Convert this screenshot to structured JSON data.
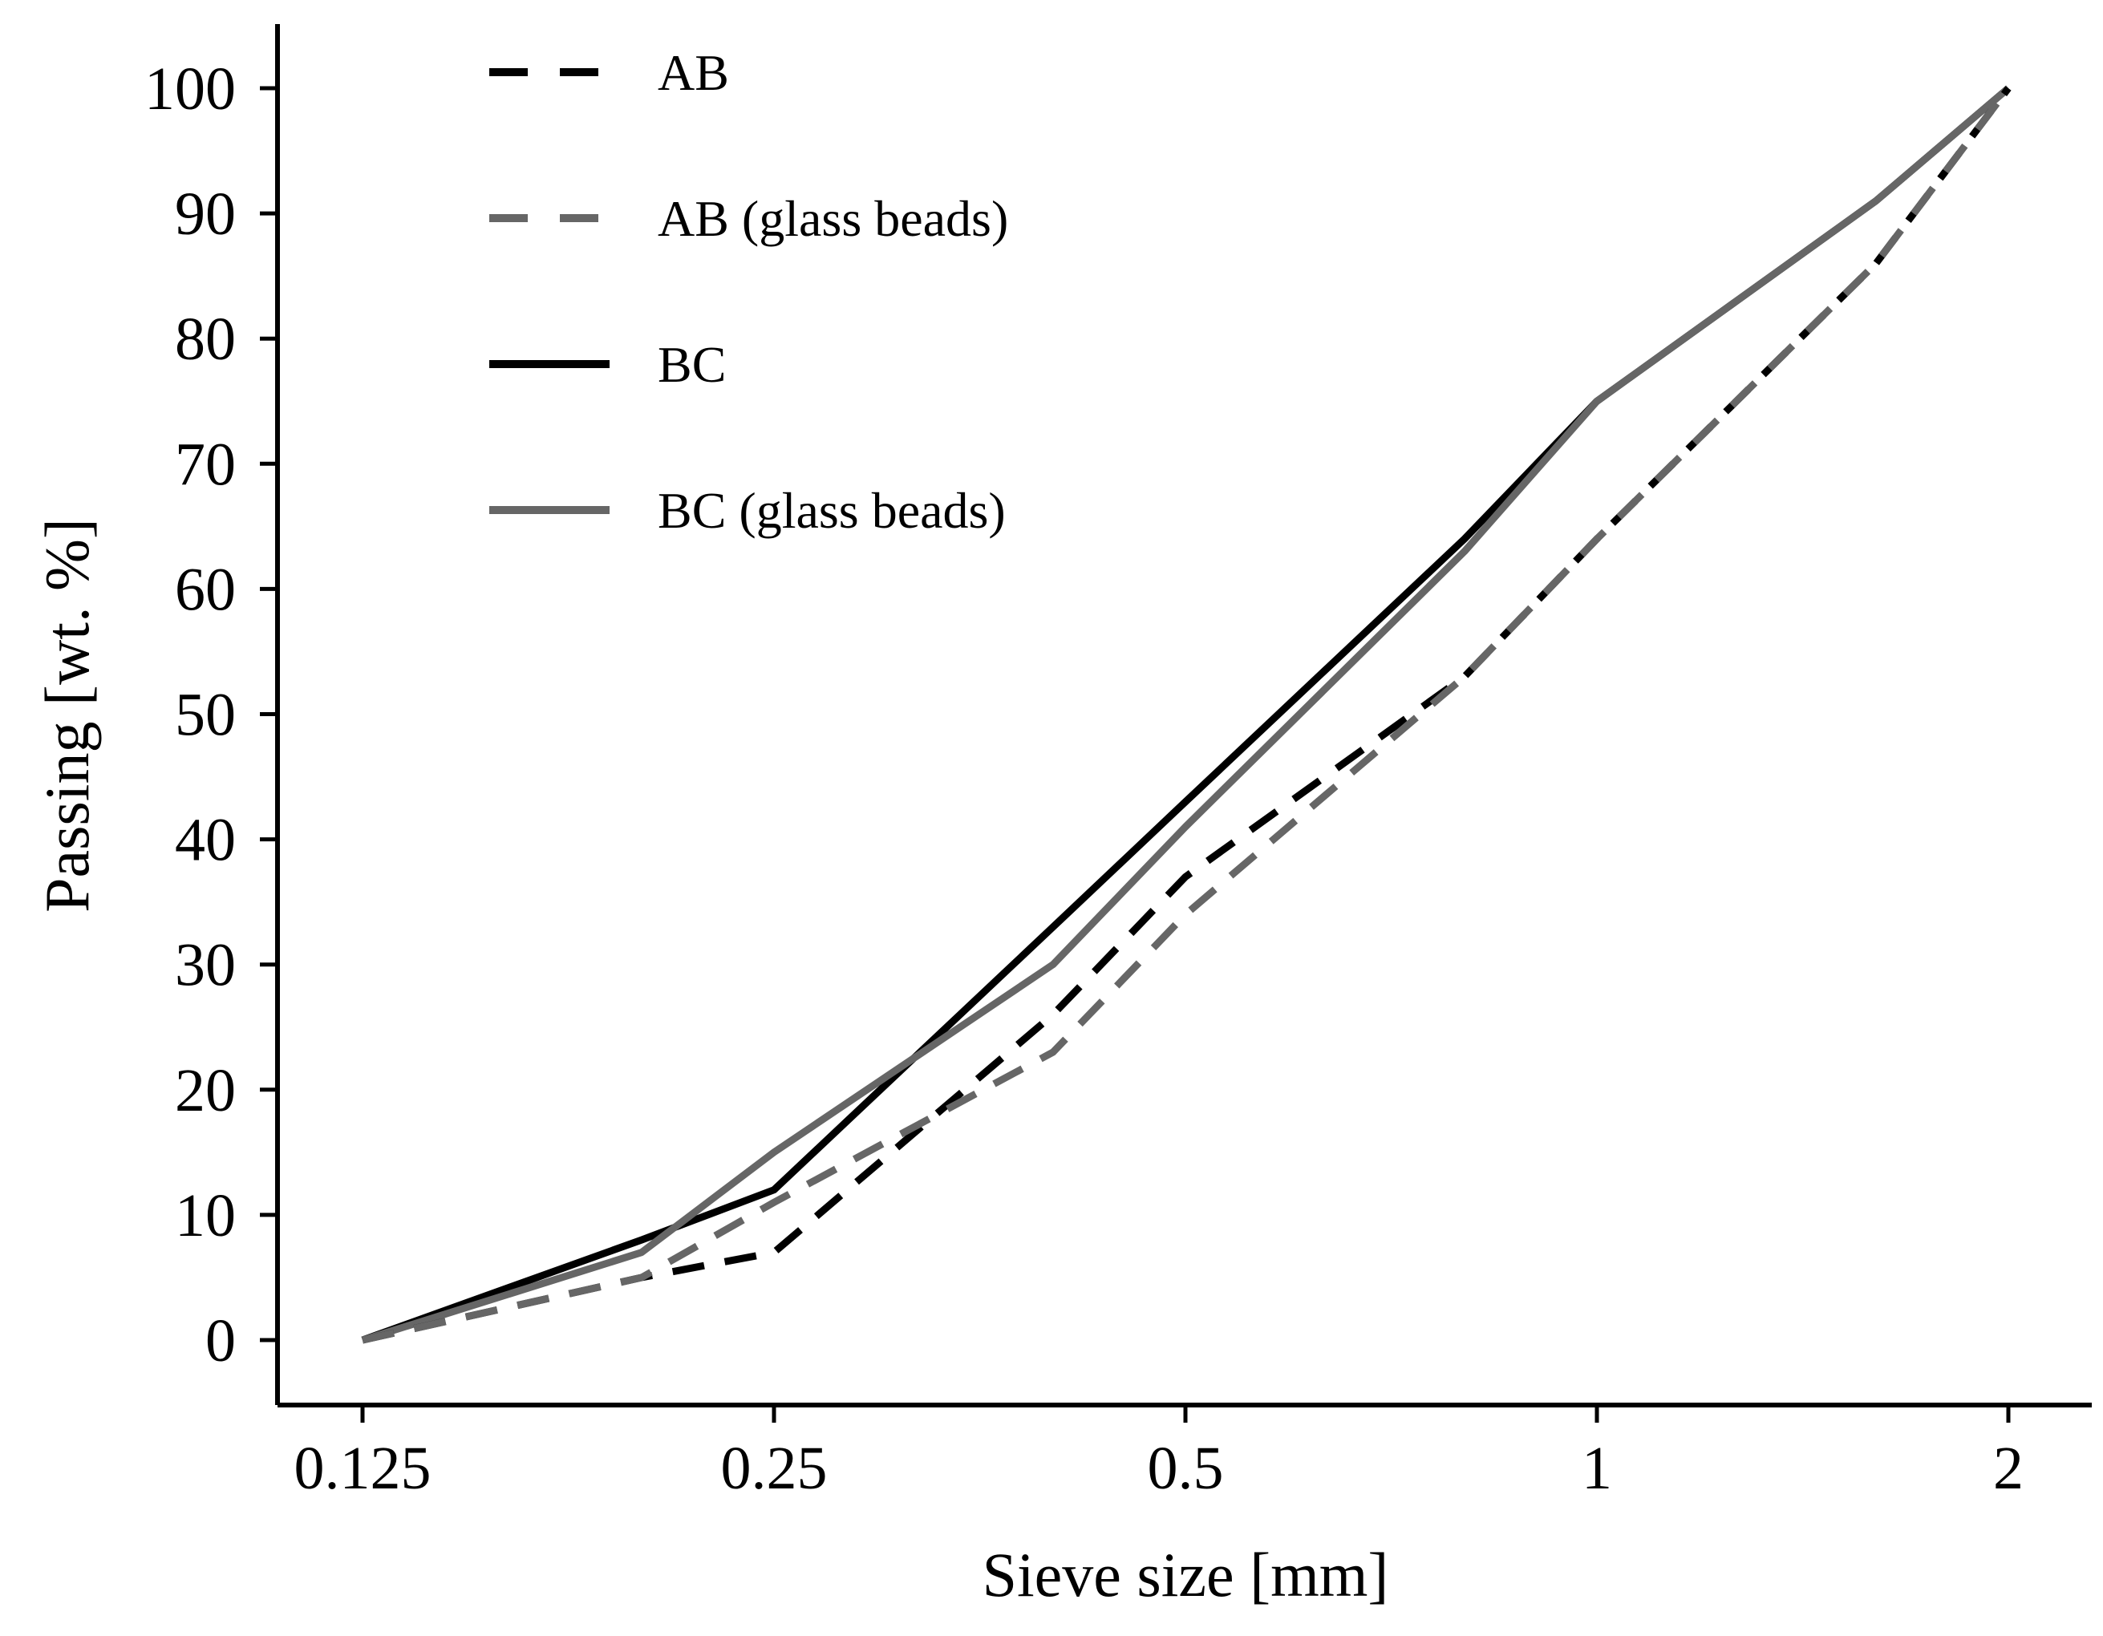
{
  "chart_data": {
    "type": "line",
    "title": "",
    "xlabel": "Sieve size [mm]",
    "ylabel": "Passing [wt. %]",
    "x_scale": "log2",
    "xlim": [
      0.125,
      2
    ],
    "ylim": [
      0,
      100
    ],
    "x_ticks": [
      0.125,
      0.25,
      0.5,
      1,
      2
    ],
    "x_tick_labels": [
      "0.125",
      "0.25",
      "0.5",
      "1",
      "2"
    ],
    "y_ticks": [
      0,
      10,
      20,
      30,
      40,
      50,
      60,
      70,
      80,
      90,
      100
    ],
    "y_tick_labels": [
      "0",
      "10",
      "20",
      "30",
      "40",
      "50",
      "60",
      "70",
      "80",
      "90",
      "100"
    ],
    "grid": false,
    "legend_position": "top-left",
    "series": [
      {
        "name": "AB",
        "color": "#000000",
        "dash": "dashed",
        "x": [
          0.125,
          0.2,
          0.25,
          0.4,
          0.5,
          0.8,
          1,
          1.6,
          2
        ],
        "values": [
          0,
          5,
          7,
          26,
          37,
          53,
          64,
          86,
          100
        ]
      },
      {
        "name": "AB (glass beads)",
        "color": "#666666",
        "dash": "dashed",
        "x": [
          0.125,
          0.2,
          0.25,
          0.4,
          0.5,
          0.8,
          1,
          1.6,
          2
        ],
        "values": [
          0,
          5,
          11,
          23,
          34,
          53,
          64,
          86,
          100
        ]
      },
      {
        "name": "BC",
        "color": "#000000",
        "dash": "solid",
        "x": [
          0.125,
          0.2,
          0.25,
          0.4,
          0.5,
          0.8,
          1,
          1.6,
          2
        ],
        "values": [
          0,
          8,
          12,
          33,
          43,
          64,
          75,
          91,
          100
        ]
      },
      {
        "name": "BC (glass beads)",
        "color": "#666666",
        "dash": "solid",
        "x": [
          0.125,
          0.2,
          0.25,
          0.4,
          0.5,
          0.8,
          1,
          1.6,
          2
        ],
        "values": [
          0,
          7,
          15,
          30,
          41,
          63,
          75,
          91,
          100
        ]
      }
    ]
  }
}
